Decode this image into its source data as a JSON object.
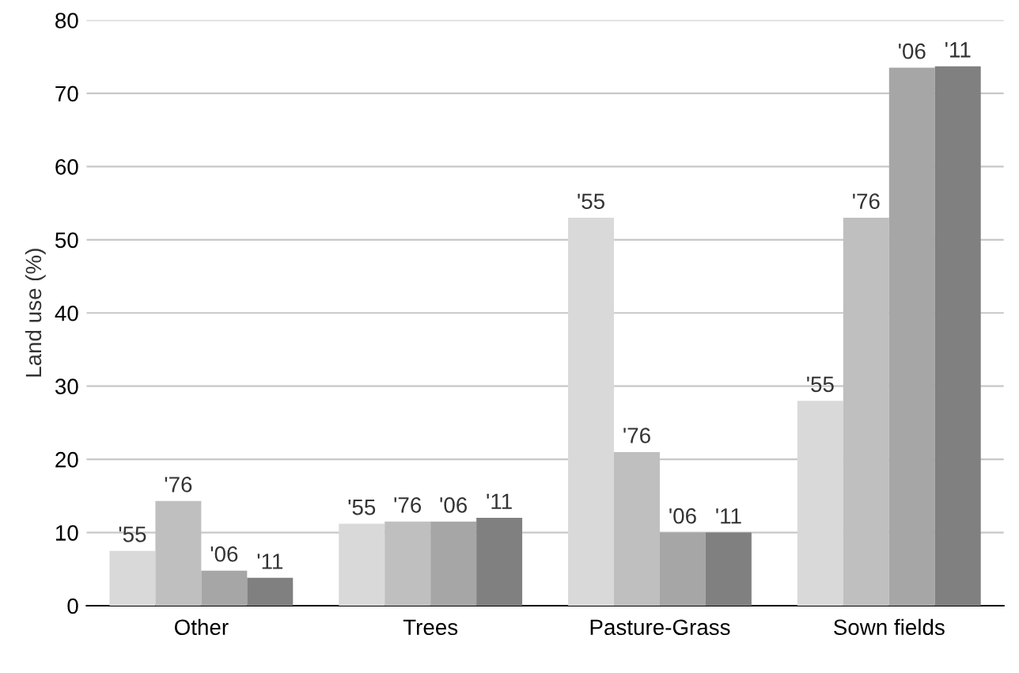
{
  "chart_data": {
    "type": "bar",
    "ylabel": "Land use (%)",
    "categories": [
      "Other",
      "Trees",
      "Pasture-Grass",
      "Sown fields"
    ],
    "series": [
      {
        "name": "'55",
        "color": "#d9d9d9",
        "values": [
          7.5,
          11.2,
          53,
          28
        ]
      },
      {
        "name": "'76",
        "color": "#bfbfbf",
        "values": [
          14.3,
          11.5,
          21,
          53
        ]
      },
      {
        "name": "'06",
        "color": "#a6a6a6",
        "values": [
          4.8,
          11.5,
          10,
          73.5
        ]
      },
      {
        "name": "'11",
        "color": "#808080",
        "values": [
          3.8,
          12,
          10,
          73.7
        ]
      }
    ],
    "ylim": [
      0,
      80
    ],
    "yticks": [
      0,
      10,
      20,
      30,
      40,
      50,
      60,
      70,
      80
    ],
    "grid": "y",
    "legend": false
  }
}
